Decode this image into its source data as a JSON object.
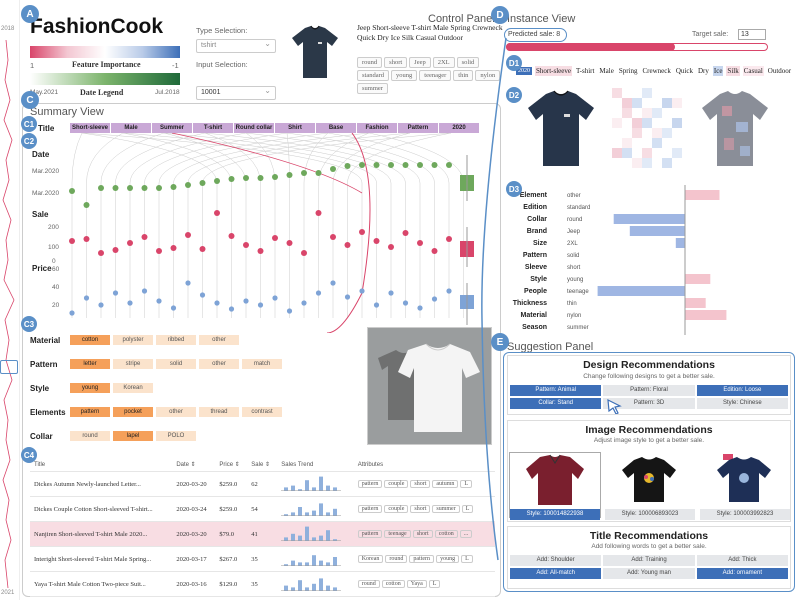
{
  "left_axis": {
    "top_label": "2018",
    "bottom_label": "2021"
  },
  "control": {
    "badge": "A",
    "app_title": "FashionCook",
    "panel_title": "Control Panel",
    "feature_importance": {
      "left": "1",
      "label": "Feature Importance",
      "right": "-1"
    },
    "date_legend": {
      "left": "May.2021",
      "label": "Date Legend",
      "right": "Jul.2018"
    },
    "type_label": "Type Selection:",
    "type_value": "tshirt",
    "input_label": "Input Selection:",
    "input_value": "10001",
    "product_title": "Jeep Short-sleeve T-shirt Male Spring Crewneck Quick Dry Ice Silk Casual Outdoor",
    "chips": [
      "round",
      "short",
      "Jeep",
      "2XL",
      "solid",
      "standard",
      "young",
      "teenager",
      "thin",
      "nylon",
      "summer"
    ]
  },
  "summary": {
    "badge": "C",
    "title": "Summary View",
    "c1": "C1",
    "c2": "C2",
    "c3": "C3",
    "c4": "C4",
    "title_row_label": "Title",
    "title_words": [
      "Short-sleeve",
      "Male",
      "Summer",
      "T-shirt",
      "Round collar",
      "Shirt",
      "Base",
      "Fashion",
      "Pattern",
      "2020"
    ],
    "date_label": "Date",
    "date_ticks": [
      "Mar.2020",
      "Mar.2020"
    ],
    "sale_label": "Sale",
    "sale_ticks": [
      "200",
      "100",
      "0"
    ],
    "price_label": "Price",
    "price_ticks": [
      "60",
      "40",
      "20"
    ],
    "attributes": [
      {
        "name": "Material",
        "values": [
          "cotton",
          "polyster",
          "ribbed",
          "other"
        ],
        "hot": [
          0
        ]
      },
      {
        "name": "Pattern",
        "values": [
          "letter",
          "stripe",
          "solid",
          "other",
          "match"
        ],
        "hot": [
          0
        ]
      },
      {
        "name": "Style",
        "values": [
          "young",
          "Korean"
        ],
        "hot": [
          0
        ]
      },
      {
        "name": "Elements",
        "values": [
          "pattern",
          "pocket",
          "other",
          "thread",
          "contrast"
        ],
        "hot": [
          0,
          1
        ]
      },
      {
        "name": "Collar",
        "values": [
          "round",
          "lapel",
          "POLO"
        ],
        "hot": [
          1
        ]
      }
    ],
    "table": {
      "headers": [
        "Title",
        "Date ⇕",
        "Price ⇕",
        "Sale ⇕",
        "Sales Trend",
        "Attributes"
      ],
      "rows": [
        {
          "title": "Dickes Autumn Newly-launched Letter...",
          "date": "2020-03-20",
          "price": "$259.0",
          "sale": "62",
          "tags": [
            "pattern",
            "couple",
            "short",
            "autumn",
            "L"
          ]
        },
        {
          "title": "Dickes Couple Cotton Short-sleeved T-shirt...",
          "date": "2020-03-24",
          "price": "$259.0",
          "sale": "54",
          "tags": [
            "pattern",
            "couple",
            "short",
            "summer",
            "L"
          ]
        },
        {
          "title": "Nanjiren Short-sleeved T-shirt Male 2020...",
          "date": "2020-03-20",
          "price": "$79.0",
          "sale": "41",
          "tags": [
            "pattern",
            "teenage",
            "short",
            "cotton",
            "..."
          ]
        },
        {
          "title": "Interight Short-sleeved T-shirt Male Spring...",
          "date": "2020-03-17",
          "price": "$267.0",
          "sale": "35",
          "tags": [
            "Korean",
            "round",
            "pattern",
            "young",
            "L"
          ]
        },
        {
          "title": "Yaya T-shirt Male Cotton Two-piece Suit...",
          "date": "2020-03-16",
          "price": "$129.0",
          "sale": "35",
          "tags": [
            "round",
            "cotton",
            "Yaya",
            "L"
          ]
        }
      ]
    }
  },
  "instance": {
    "badge": "D",
    "title": "Instance View",
    "predicted_sale": "Predicted sale: 8",
    "target_label": "Target sale:",
    "target_value": "13",
    "d1": "D1",
    "d2": "D2",
    "d3": "D3",
    "d1_year": "2020",
    "d1_words": [
      "Short-sleeve",
      "T-shirt",
      "Male",
      "Spring",
      "Crewneck",
      "Quick",
      "Dry",
      "Ice",
      "Silk",
      "Casual",
      "Outdoor"
    ],
    "features": [
      {
        "name": "Element",
        "value": "other",
        "w": 0.15
      },
      {
        "name": "Edition",
        "value": "standard",
        "w": 0.0
      },
      {
        "name": "Collar",
        "value": "round",
        "w": -0.31
      },
      {
        "name": "Brand",
        "value": "Jeep",
        "w": -0.24
      },
      {
        "name": "Size",
        "value": "2XL",
        "w": -0.04
      },
      {
        "name": "Pattern",
        "value": "solid",
        "w": 0.0
      },
      {
        "name": "Sleeve",
        "value": "short",
        "w": 0.0
      },
      {
        "name": "Style",
        "value": "young",
        "w": 0.11
      },
      {
        "name": "People",
        "value": "teenage",
        "w": -0.38
      },
      {
        "name": "Thickness",
        "value": "thin",
        "w": 0.09
      },
      {
        "name": "Material",
        "value": "nylon",
        "w": 0.18
      },
      {
        "name": "Season",
        "value": "summer",
        "w": 0.0
      }
    ]
  },
  "suggestion": {
    "badge": "E",
    "title": "Suggestion Panel",
    "design_title": "Design Recommendations",
    "design_sub": "Change following designs to get a better sale.",
    "design_buttons": [
      {
        "label": "Pattern: Animal",
        "blue": true
      },
      {
        "label": "Pattern: Floral",
        "blue": false
      },
      {
        "label": "Edition: Loose",
        "blue": true
      },
      {
        "label": "Collar: Stand",
        "blue": true
      },
      {
        "label": "Pattern: 3D",
        "blue": false
      },
      {
        "label": "Style: Chinese",
        "blue": false
      }
    ],
    "image_title": "Image Recommendations",
    "image_sub": "Adjust image style to get a better sale.",
    "image_styles": [
      "Style: 100014822938",
      "Style: 100006893023",
      "Style: 100003992823"
    ],
    "title_title": "Title Recommendations",
    "title_sub": "Add following words to get a better sale.",
    "title_buttons": [
      {
        "label": "Add: Shoulder",
        "blue": false
      },
      {
        "label": "Add: Training",
        "blue": false
      },
      {
        "label": "Add: Thick",
        "blue": false
      },
      {
        "label": "Add: All-match",
        "blue": true
      },
      {
        "label": "Add: Young man",
        "blue": false
      },
      {
        "label": "Add: ornament",
        "blue": true
      }
    ]
  },
  "colors": {
    "accent": "#5a8fc7",
    "sale": "#d9456a",
    "date": "#6ea85c",
    "price": "#7ea3d6",
    "title": "#c9a8d6",
    "category": "#f5a05a"
  }
}
